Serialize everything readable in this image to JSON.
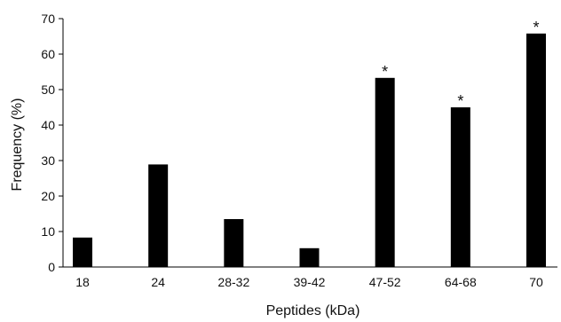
{
  "chart_data": {
    "type": "bar",
    "categories": [
      "18",
      "24",
      "28-32",
      "39-42",
      "47-52",
      "64-68",
      "70"
    ],
    "values": [
      8.3,
      28.9,
      13.5,
      5.3,
      53.3,
      45.0,
      65.8
    ],
    "significant": [
      false,
      false,
      false,
      false,
      true,
      true,
      true
    ],
    "significance_marker": "*",
    "xlabel": "Peptides (kDa)",
    "ylabel": "Frequency (%)",
    "ylim": [
      0,
      70
    ],
    "yticks": [
      0,
      10,
      20,
      30,
      40,
      50,
      60,
      70
    ],
    "grid": false,
    "legend": "none",
    "bar_color": "#000000",
    "axis_color": "#000000"
  }
}
